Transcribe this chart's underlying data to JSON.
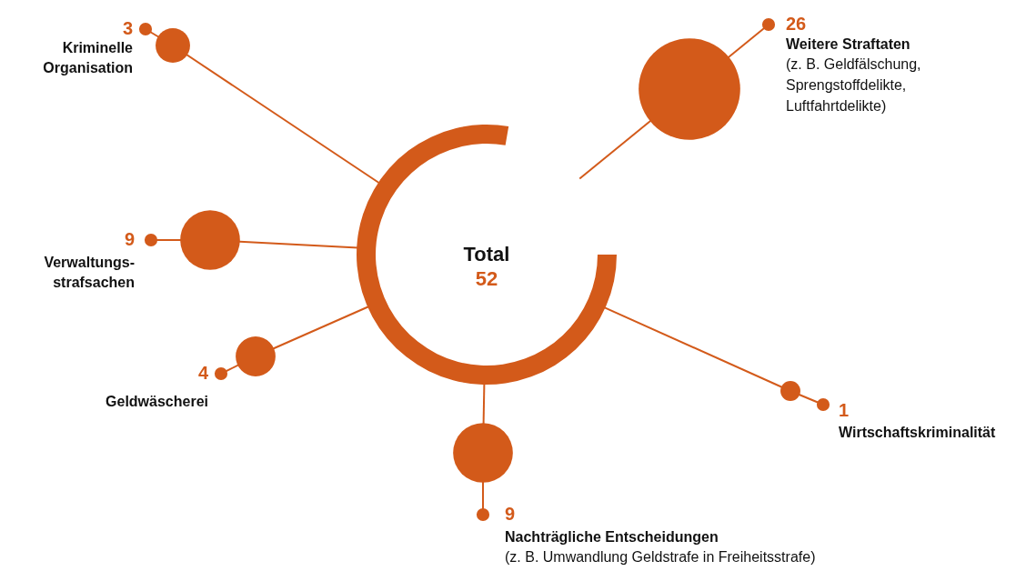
{
  "chart_data": {
    "type": "other",
    "title": "Total",
    "categories": [
      "Kriminelle\nOrganisation",
      "Weitere Straftaten",
      "Verwaltungs-\nstrafsachen",
      "Geldwäscherei",
      "Nachträgliche Entscheidungen",
      "Wirtschaftskriminalität"
    ],
    "values": [
      3,
      26,
      9,
      4,
      9,
      1
    ],
    "color": "#d35a1a",
    "data_labels": true,
    "annotations": [
      "52",
      "(z. B. Geldfälschung,\nSprengstoffdelikte,\nLuftfahrtdelikte)",
      "(z. B. Umwandlung Geldstrafe in Freiheitsstrafe)"
    ]
  }
}
